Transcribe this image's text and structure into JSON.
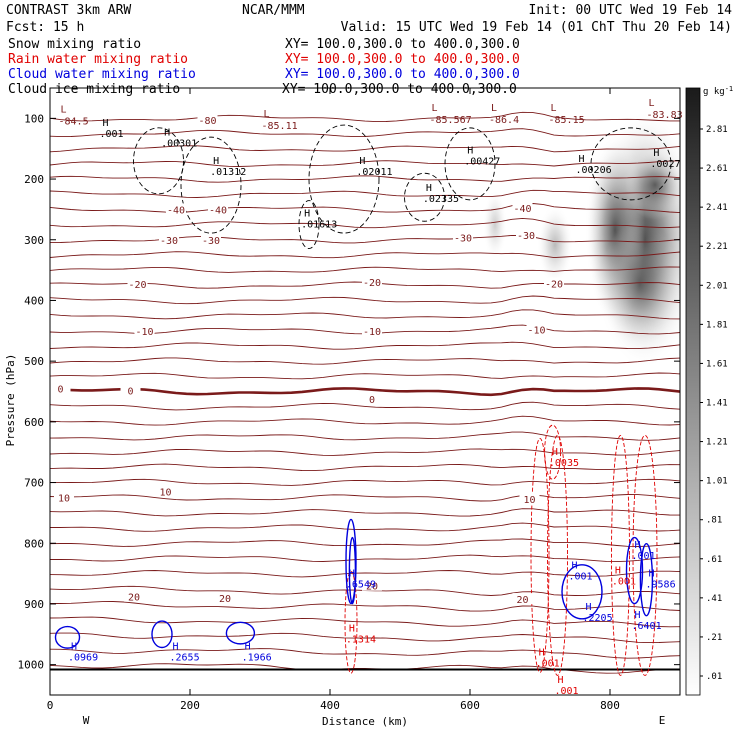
{
  "header": {
    "left_title": "CONTRAST  3km ARW",
    "center_title": "NCAR/MMM",
    "init": "Init: 00 UTC Wed 19 Feb 14",
    "fcst": "Fcst:   15 h",
    "valid": "Valid: 15 UTC Wed 19 Feb 14 (01 ChT Thu 20 Feb 14)",
    "fields": [
      {
        "name": "Snow mixing ratio",
        "xy": "XY= 100.0,300.0 to 400.0,300.0",
        "color": "#000000"
      },
      {
        "name": "Rain water mixing ratio",
        "xy": "XY= 100.0,300.0 to 400.0,300.0",
        "color": "#e00000"
      },
      {
        "name": "Cloud water mixing ratio",
        "xy": "XY= 100.0,300.0 to 400.0,300.0",
        "color": "#0000dd"
      },
      {
        "name": "Cloud ice mixing ratio",
        "xy": "XY= 100.0,300.0 to 400.0,300.0",
        "color": "#000000"
      }
    ]
  },
  "chart_data": {
    "type": "heatmap",
    "xlabel": "Distance (km)",
    "ylabel": "Pressure (hPa)",
    "xlim": [
      0,
      900
    ],
    "ylim": [
      1050,
      50
    ],
    "x_ticks": [
      0,
      200,
      400,
      600,
      800
    ],
    "y_ticks": [
      100,
      200,
      300,
      400,
      500,
      600,
      700,
      800,
      900,
      1000
    ],
    "end_labels": {
      "left": "W",
      "right": "E"
    },
    "colorbar": {
      "unit": "g kg",
      "unit_exp": "-1",
      "values": [
        ".01",
        ".21",
        ".41",
        ".61",
        ".81",
        "1.01",
        "1.21",
        "1.41",
        "1.61",
        "1.81",
        "2.01",
        "2.21",
        "2.41",
        "2.61",
        "2.81"
      ]
    },
    "temperature_contours": {
      "color": "#7a1a1a",
      "levels_labeled": [
        {
          "text": "-80",
          "x": 225,
          "p": 103
        },
        {
          "text": "-40",
          "x": 180,
          "p": 250
        },
        {
          "text": "-40",
          "x": 240,
          "p": 250
        },
        {
          "text": "-40",
          "x": 675,
          "p": 248
        },
        {
          "text": "-30",
          "x": 170,
          "p": 300
        },
        {
          "text": "-30",
          "x": 230,
          "p": 300
        },
        {
          "text": "-30",
          "x": 590,
          "p": 296
        },
        {
          "text": "-30",
          "x": 680,
          "p": 292
        },
        {
          "text": "-20",
          "x": 125,
          "p": 373
        },
        {
          "text": "-20",
          "x": 460,
          "p": 370
        },
        {
          "text": "-20",
          "x": 720,
          "p": 372
        },
        {
          "text": "-10",
          "x": 135,
          "p": 450
        },
        {
          "text": "-10",
          "x": 460,
          "p": 450
        },
        {
          "text": "-10",
          "x": 695,
          "p": 448
        },
        {
          "text": "0",
          "x": 15,
          "p": 545
        },
        {
          "text": "0",
          "x": 115,
          "p": 548
        },
        {
          "text": "0",
          "x": 460,
          "p": 562
        },
        {
          "text": "10",
          "x": 20,
          "p": 725
        },
        {
          "text": "10",
          "x": 165,
          "p": 715
        },
        {
          "text": "10",
          "x": 685,
          "p": 727
        },
        {
          "text": "20",
          "x": 120,
          "p": 888
        },
        {
          "text": "20",
          "x": 250,
          "p": 890
        },
        {
          "text": "20",
          "x": 460,
          "p": 870
        },
        {
          "text": "20",
          "x": 675,
          "p": 892
        }
      ]
    },
    "lows": [
      {
        "x": 15,
        "p": 90,
        "value": "-84.5"
      },
      {
        "x": 305,
        "p": 98,
        "value": "-85.11"
      },
      {
        "x": 545,
        "p": 88,
        "value": "-85.567"
      },
      {
        "x": 630,
        "p": 88,
        "value": "-86.4"
      },
      {
        "x": 715,
        "p": 88,
        "value": "-85.15"
      },
      {
        "x": 855,
        "p": 80,
        "value": "-83.83"
      }
    ],
    "snow_highs": [
      {
        "x": 75,
        "p": 113,
        "value": ".001"
      },
      {
        "x": 163,
        "p": 128,
        "value": ".00301"
      },
      {
        "x": 233,
        "p": 175,
        "value": ".01312"
      },
      {
        "x": 442,
        "p": 175,
        "value": ".02011"
      },
      {
        "x": 363,
        "p": 262,
        "value": ".01613"
      },
      {
        "x": 537,
        "p": 220,
        "value": ".02335"
      },
      {
        "x": 596,
        "p": 158,
        "value": ".00427"
      },
      {
        "x": 755,
        "p": 172,
        "value": ".00206"
      },
      {
        "x": 862,
        "p": 162,
        "value": ".0027"
      }
    ],
    "rain_highs": [
      {
        "x": 717,
        "p": 655,
        "value": ".0035"
      },
      {
        "x": 427,
        "p": 945,
        "value": ".1314"
      },
      {
        "x": 698,
        "p": 985,
        "value": ".001"
      },
      {
        "x": 725,
        "p": 1030,
        "value": ".001"
      },
      {
        "x": 807,
        "p": 850,
        "value": ".001"
      }
    ],
    "cloud_highs": [
      {
        "x": 427,
        "p": 855,
        "value": ".6549"
      },
      {
        "x": 30,
        "p": 975,
        "value": ".0969"
      },
      {
        "x": 175,
        "p": 975,
        "value": ".2655"
      },
      {
        "x": 278,
        "p": 975,
        "value": ".1966"
      },
      {
        "x": 765,
        "p": 910,
        "value": ".2205"
      },
      {
        "x": 835,
        "p": 808,
        "value": ".001"
      },
      {
        "x": 745,
        "p": 842,
        "value": ".001"
      },
      {
        "x": 855,
        "p": 855,
        "value": ".9586"
      },
      {
        "x": 835,
        "p": 923,
        "value": ".6401"
      }
    ],
    "ice_max": "2.81",
    "ice_peak_location": {
      "x": 850,
      "p": 300
    }
  }
}
